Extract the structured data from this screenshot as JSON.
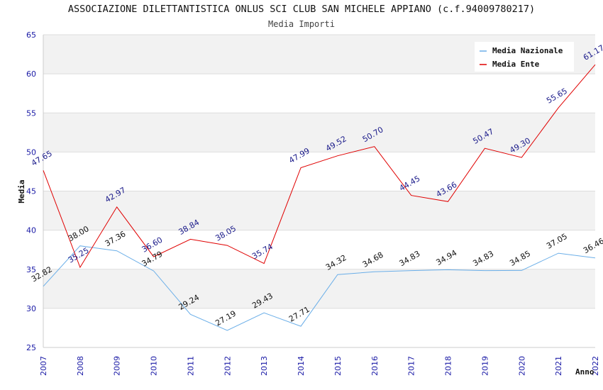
{
  "chart_data": {
    "type": "line",
    "title": "ASSOCIAZIONE DILETTANTISTICA ONLUS SCI CLUB SAN MICHELE APPIANO (c.f.94009780217)",
    "subtitle": "Media Importi",
    "xlabel": "Anno",
    "ylabel": "Media",
    "ylim": [
      25,
      65
    ],
    "yticks": [
      25,
      30,
      35,
      40,
      45,
      50,
      55,
      60,
      65
    ],
    "grid": true,
    "legend_position": "top-right",
    "categories": [
      "2007",
      "2008",
      "2009",
      "2010",
      "2011",
      "2012",
      "2013",
      "2014",
      "2015",
      "2016",
      "2017",
      "2018",
      "2019",
      "2020",
      "2021",
      "2022"
    ],
    "series": [
      {
        "name": "Media Nazionale",
        "color": "#6aaee8",
        "values": [
          32.82,
          38.0,
          37.36,
          34.79,
          29.24,
          27.19,
          29.43,
          27.71,
          34.32,
          34.68,
          34.83,
          34.94,
          34.83,
          34.85,
          37.05,
          36.46
        ],
        "labels": [
          "32.82",
          "38.00",
          "37.36",
          "34.79",
          "29.24",
          "27.19",
          "29.43",
          "27.71",
          "34.32",
          "34.68",
          "34.83",
          "34.94",
          "34.83",
          "34.85",
          "37.05",
          "36.46"
        ]
      },
      {
        "name": "Media Ente",
        "color": "#e00000",
        "values": [
          47.65,
          35.25,
          42.97,
          36.6,
          38.84,
          38.05,
          35.74,
          47.99,
          49.52,
          50.7,
          44.45,
          43.66,
          50.47,
          49.3,
          55.65,
          61.17
        ],
        "labels": [
          "47.65",
          "35.25",
          "42.97",
          "36.60",
          "38.84",
          "38.05",
          "35.74",
          "47.99",
          "49.52",
          "50.70",
          "44.45",
          "43.66",
          "50.47",
          "49.30",
          "55.65",
          "61.17"
        ]
      }
    ]
  }
}
